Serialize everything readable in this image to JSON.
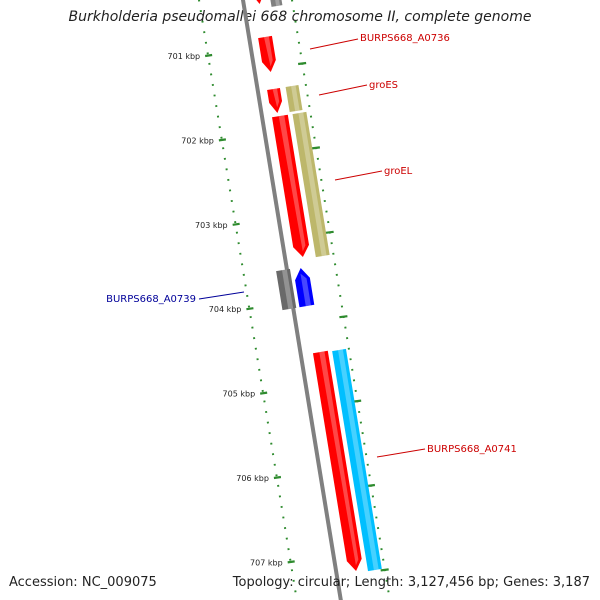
{
  "title": "Burkholderia pseudomallei 668 chromosome II, complete genome",
  "footer": {
    "accession_label": "Accession:",
    "accession": "NC_009075",
    "topology_label": "Topology:",
    "topology": "circular",
    "length_label": "Length:",
    "length": "3,127,456 bp",
    "genes_label": "Genes:",
    "genes": "3,187"
  },
  "colors": {
    "backbone": "#808080",
    "tick": "#2e8b2e",
    "red": "#ff0000",
    "olive": "#bdb76b",
    "gray": "#696969",
    "blue": "#0000ff",
    "cyan": "#00bfff",
    "red_label": "#cc0000",
    "blue_label": "#000099"
  },
  "ticks": [
    {
      "kbp": 701,
      "label": "701 kbp"
    },
    {
      "kbp": 702,
      "label": "702 kbp"
    },
    {
      "kbp": 703,
      "label": "703 kbp"
    },
    {
      "kbp": 704,
      "label": "704 kbp"
    },
    {
      "kbp": 705,
      "label": "705 kbp"
    },
    {
      "kbp": 706,
      "label": "706 kbp"
    },
    {
      "kbp": 707,
      "label": "707 kbp"
    }
  ],
  "genes": [
    {
      "name": "BURPS668_A0736",
      "color": "red",
      "labeled": true,
      "label_color": "red_label"
    },
    {
      "name": "groES",
      "color": "olive",
      "labeled": true,
      "label_color": "red_label"
    },
    {
      "name": "groEL",
      "color": "olive",
      "labeled": true,
      "label_color": "red_label"
    },
    {
      "name": "BURPS668_A0739",
      "color": "gray",
      "labeled": true,
      "label_color": "blue_label"
    },
    {
      "name": "BURPS668_A0741",
      "color": "cyan",
      "labeled": true,
      "label_color": "red_label"
    }
  ]
}
